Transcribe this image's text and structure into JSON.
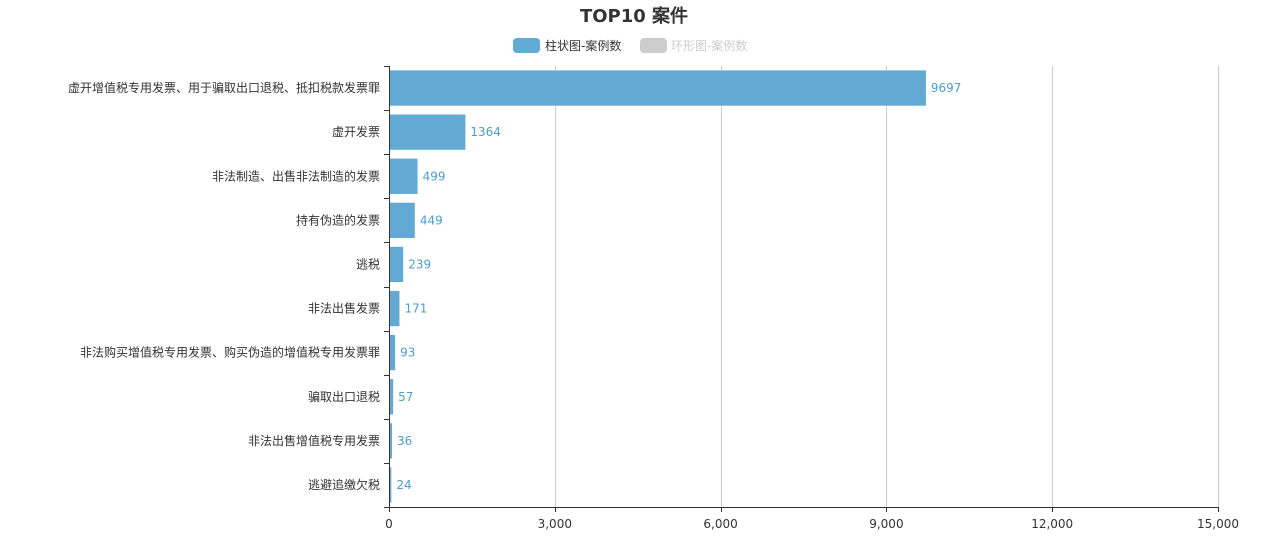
{
  "chart_data": {
    "type": "bar",
    "orientation": "horizontal",
    "title": "TOP10 案件",
    "legend": {
      "placement": "top-center",
      "items": [
        {
          "label": "柱状图-案例数",
          "color": "#62a9d3",
          "active": true
        },
        {
          "label": "环形图-案例数",
          "color": "#cccccc",
          "active": false
        }
      ]
    },
    "categories": [
      "虚开增值税专用发票、用于骗取出口退税、抵扣税款发票罪",
      "虚开发票",
      "非法制造、出售非法制造的发票",
      "持有伪造的发票",
      "逃税",
      "非法出售发票",
      "非法购买增值税专用发票、购买伪造的增值税专用发票罪",
      "骗取出口退税",
      "非法出售增值税专用发票",
      "逃避追缴欠税"
    ],
    "series": [
      {
        "name": "柱状图-案例数",
        "values": [
          9697,
          1364,
          499,
          449,
          239,
          171,
          93,
          57,
          36,
          24
        ]
      }
    ],
    "xlim": [
      0,
      15000
    ],
    "x_ticks": [
      0,
      3000,
      6000,
      9000,
      12000,
      15000
    ],
    "x_tick_labels": [
      "0",
      "3,000",
      "6,000",
      "9,000",
      "12,000",
      "15,000"
    ],
    "grid": "vertical",
    "colors": {
      "bar": "#62a9d3",
      "data_label": "#4a9fd0",
      "grid": "#cccccc",
      "axis": "#333333",
      "legend_inactive": "#cccccc"
    }
  }
}
